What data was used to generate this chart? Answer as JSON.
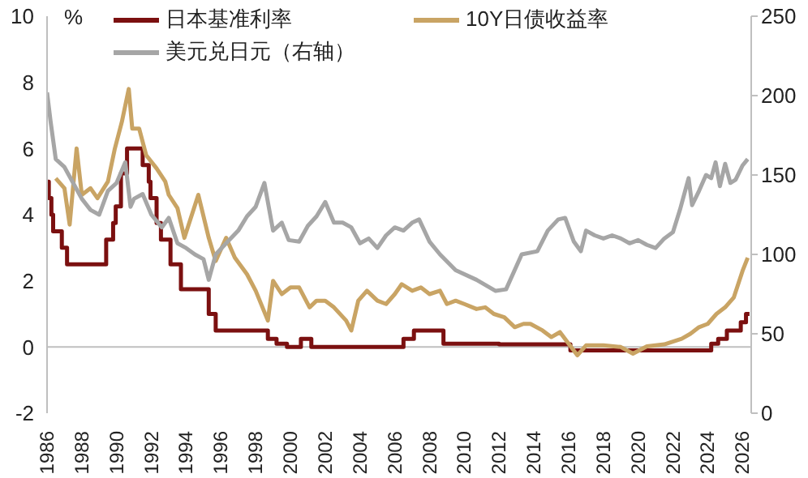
{
  "chart_data": {
    "type": "line",
    "ylabel": "%",
    "xlim": [
      1986,
      2026.5
    ],
    "xticks": [
      1986,
      1988,
      1990,
      1992,
      1994,
      1996,
      1998,
      2000,
      2002,
      2004,
      2006,
      2008,
      2010,
      2012,
      2014,
      2016,
      2018,
      2020,
      2022,
      2024,
      2026
    ],
    "ylim": [
      -2,
      10
    ],
    "yticks": [
      -2,
      0,
      2,
      4,
      6,
      8,
      10
    ],
    "y2lim": [
      0,
      250
    ],
    "y2ticks": [
      0,
      50,
      100,
      150,
      200,
      250
    ],
    "legend": "top",
    "grid": false,
    "marker": "none",
    "line_style": "solid",
    "ref_lines": [
      {
        "axis": "y",
        "value": 0,
        "color": "#bfbfbf"
      }
    ],
    "series": [
      {
        "name": "日本基准利率",
        "type": "step",
        "color": "#7b1010",
        "x": [
          1986.0,
          1986.1,
          1986.25,
          1986.35,
          1986.85,
          1987.15,
          1989.4,
          1989.8,
          1989.95,
          1990.25,
          1990.6,
          1991.5,
          1991.85,
          1991.95,
          1992.3,
          1992.55,
          1993.1,
          1993.7,
          1995.3,
          1995.7,
          1998.7,
          1999.2,
          1999.8,
          2000.6,
          2001.2,
          2006.5,
          2007.1,
          2008.8,
          2012.0,
          2016.1,
          2024.2,
          2024.6,
          2025.1,
          2025.9,
          2026.2,
          2026.4
        ],
        "values": [
          5.0,
          4.5,
          4.0,
          3.5,
          3.0,
          2.5,
          3.25,
          3.75,
          4.25,
          5.25,
          6.0,
          5.5,
          5.0,
          4.5,
          3.75,
          3.25,
          2.5,
          1.75,
          1.0,
          0.5,
          0.25,
          0.1,
          0.0,
          0.25,
          0.0,
          0.25,
          0.5,
          0.1,
          0.08,
          -0.1,
          0.1,
          0.25,
          0.5,
          0.75,
          1.0,
          1.0
        ]
      },
      {
        "name": "10Y日债收益率",
        "color": "#c9a464",
        "x": [
          1986.5,
          1987.0,
          1987.3,
          1987.7,
          1988.0,
          1988.5,
          1988.9,
          1989.5,
          1989.9,
          1990.3,
          1990.7,
          1990.9,
          1991.3,
          1991.7,
          1992.3,
          1992.8,
          1993.0,
          1993.5,
          1993.9,
          1994.7,
          1995.3,
          1995.7,
          1996.3,
          1996.8,
          1997.5,
          1998.0,
          1998.7,
          1999.0,
          1999.5,
          2000.0,
          2000.5,
          2001.1,
          2001.5,
          2002.0,
          2002.5,
          2003.2,
          2003.5,
          2003.9,
          2004.4,
          2005.0,
          2005.5,
          2006.0,
          2006.4,
          2007.0,
          2007.5,
          2008.0,
          2008.6,
          2009.0,
          2009.5,
          2010.0,
          2010.7,
          2011.2,
          2011.7,
          2012.3,
          2012.9,
          2013.4,
          2013.8,
          2014.5,
          2015.0,
          2015.5,
          2016.0,
          2016.5,
          2017.0,
          2018.0,
          2019.0,
          2019.7,
          2020.5,
          2021.5,
          2022.5,
          2023.0,
          2023.5,
          2024.0,
          2024.5,
          2025.0,
          2025.5,
          2026.0,
          2026.3
        ],
        "values": [
          5.1,
          4.8,
          3.7,
          6.0,
          4.6,
          4.8,
          4.5,
          5.0,
          6.0,
          6.8,
          7.8,
          6.6,
          6.6,
          5.8,
          5.4,
          5.0,
          4.6,
          4.2,
          3.3,
          4.6,
          3.3,
          2.6,
          3.3,
          2.7,
          2.2,
          1.7,
          0.8,
          2.0,
          1.6,
          1.8,
          1.8,
          1.2,
          1.4,
          1.4,
          1.2,
          0.8,
          0.5,
          1.4,
          1.7,
          1.4,
          1.3,
          1.6,
          1.9,
          1.7,
          1.8,
          1.6,
          1.7,
          1.3,
          1.4,
          1.3,
          1.15,
          1.2,
          1.0,
          0.9,
          0.6,
          0.7,
          0.7,
          0.5,
          0.3,
          0.45,
          0.1,
          -0.25,
          0.05,
          0.05,
          0.0,
          -0.2,
          0.02,
          0.08,
          0.25,
          0.4,
          0.6,
          0.7,
          1.0,
          1.2,
          1.5,
          2.3,
          2.7
        ]
      },
      {
        "name": "美元兑日元（右轴）",
        "axis": "y2",
        "color": "#a6a6a6",
        "x": [
          1986.0,
          1986.2,
          1986.5,
          1987.0,
          1987.5,
          1988.0,
          1988.5,
          1989.0,
          1989.5,
          1990.0,
          1990.5,
          1990.8,
          1991.0,
          1991.5,
          1992.0,
          1992.6,
          1993.0,
          1993.5,
          1994.0,
          1994.5,
          1995.0,
          1995.3,
          1995.7,
          1996.3,
          1997.0,
          1997.5,
          1998.0,
          1998.5,
          1999.0,
          1999.5,
          1999.9,
          2000.5,
          2001.0,
          2001.5,
          2002.0,
          2002.5,
          2003.0,
          2003.5,
          2004.0,
          2004.5,
          2005.0,
          2005.5,
          2006.0,
          2006.5,
          2007.0,
          2007.4,
          2008.0,
          2008.6,
          2009.5,
          2010.7,
          2011.8,
          2012.4,
          2013.3,
          2014.2,
          2014.8,
          2015.4,
          2015.8,
          2016.3,
          2016.7,
          2017.0,
          2017.5,
          2018.0,
          2018.5,
          2019.0,
          2019.5,
          2020.0,
          2020.5,
          2021.0,
          2021.5,
          2022.0,
          2022.4,
          2022.9,
          2023.1,
          2023.5,
          2023.9,
          2024.2,
          2024.45,
          2024.7,
          2025.0,
          2025.3,
          2025.6,
          2026.0,
          2026.3
        ],
        "values": [
          202,
          184,
          160,
          155,
          145,
          135,
          128,
          125,
          140,
          145,
          158,
          130,
          135,
          138,
          125,
          117,
          123,
          107,
          104,
          100,
          97,
          84,
          100,
          107,
          115,
          124,
          130,
          145,
          115,
          120,
          109,
          108,
          118,
          124,
          133,
          120,
          120,
          117,
          107,
          110,
          104,
          112,
          117,
          115,
          120,
          122,
          108,
          100,
          90,
          84,
          77,
          78,
          100,
          102,
          115,
          122,
          123,
          108,
          102,
          115,
          112,
          110,
          112,
          110,
          107,
          109,
          106,
          104,
          110,
          114,
          128,
          148,
          131,
          140,
          150,
          148,
          158,
          143,
          157,
          145,
          147,
          156,
          160
        ]
      }
    ]
  }
}
